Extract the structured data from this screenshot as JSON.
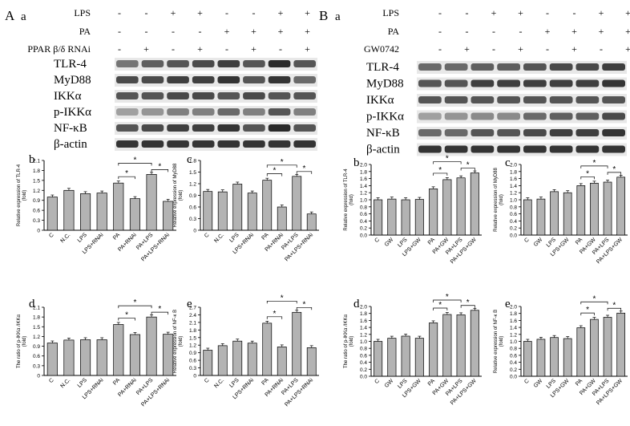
{
  "panels": {
    "A": {
      "letter": "A",
      "sub": "a",
      "conditions": [
        {
          "label": "LPS",
          "signs": [
            "-",
            "-",
            "+",
            "+",
            "-",
            "-",
            "+",
            "+"
          ]
        },
        {
          "label": "PA",
          "signs": [
            "-",
            "-",
            "-",
            "-",
            "+",
            "+",
            "+",
            "+"
          ]
        },
        {
          "label": "PPAR β/δ RNAi",
          "signs": [
            "-",
            "+",
            "-",
            "+",
            "-",
            "+",
            "-",
            "+"
          ]
        }
      ],
      "blots": [
        "TLR-4",
        "MyD88",
        "IKKα",
        "p-IKKα",
        "NF-κB",
        "β-actin"
      ],
      "blot_intensity": [
        [
          0.55,
          0.65,
          0.7,
          0.75,
          0.8,
          0.7,
          0.9,
          0.7
        ],
        [
          0.75,
          0.75,
          0.8,
          0.8,
          0.85,
          0.7,
          0.85,
          0.6
        ],
        [
          0.7,
          0.7,
          0.75,
          0.75,
          0.7,
          0.75,
          0.7,
          0.7
        ],
        [
          0.35,
          0.4,
          0.5,
          0.5,
          0.6,
          0.5,
          0.7,
          0.5
        ],
        [
          0.7,
          0.75,
          0.8,
          0.8,
          0.85,
          0.7,
          0.9,
          0.7
        ],
        [
          0.85,
          0.85,
          0.85,
          0.85,
          0.85,
          0.85,
          0.85,
          0.85
        ]
      ]
    },
    "B": {
      "letter": "B",
      "sub": "a",
      "conditions": [
        {
          "label": "LPS",
          "signs": [
            "-",
            "-",
            "+",
            "+",
            "-",
            "-",
            "+",
            "+"
          ]
        },
        {
          "label": "PA",
          "signs": [
            "-",
            "-",
            "-",
            "-",
            "+",
            "+",
            "+",
            "+"
          ]
        },
        {
          "label": "GW0742",
          "signs": [
            "-",
            "+",
            "-",
            "+",
            "-",
            "+",
            "-",
            "+"
          ]
        }
      ],
      "blots": [
        "TLR-4",
        "MyD88",
        "IKKα",
        "p-IKKα",
        "NF-κB",
        "β-actin"
      ],
      "blot_intensity": [
        [
          0.6,
          0.6,
          0.65,
          0.65,
          0.7,
          0.75,
          0.75,
          0.8
        ],
        [
          0.7,
          0.7,
          0.8,
          0.8,
          0.8,
          0.8,
          0.8,
          0.85
        ],
        [
          0.7,
          0.7,
          0.7,
          0.7,
          0.7,
          0.7,
          0.7,
          0.7
        ],
        [
          0.35,
          0.4,
          0.45,
          0.45,
          0.6,
          0.65,
          0.65,
          0.75
        ],
        [
          0.6,
          0.6,
          0.7,
          0.7,
          0.75,
          0.8,
          0.8,
          0.85
        ],
        [
          0.85,
          0.85,
          0.85,
          0.85,
          0.85,
          0.85,
          0.85,
          0.85
        ]
      ]
    }
  },
  "chart_data": [
    {
      "type": "bar",
      "id": "A-b",
      "panel_label": "b",
      "ylabel": "Relative expression of TLR-4",
      "ylabel_unit": "(fold)",
      "ylim": [
        0,
        2.1
      ],
      "yticks": [
        "0",
        "0.3",
        "0.6",
        "0.9",
        "1.2",
        "1.5",
        "1.8",
        "2.1"
      ],
      "categories": [
        "C",
        "N.C.",
        "LPS",
        "LPS+RNAi",
        "PA",
        "PA+RNAi",
        "PA+LPS",
        "PA+LPS+RNAi"
      ],
      "values": [
        1.0,
        1.2,
        1.1,
        1.12,
        1.42,
        0.95,
        1.68,
        0.87
      ],
      "significance": [
        {
          "from": 4,
          "to": 5,
          "label": "*"
        },
        {
          "from": 4,
          "to": 6,
          "label": "*"
        },
        {
          "from": 6,
          "to": 7,
          "label": "*"
        }
      ]
    },
    {
      "type": "bar",
      "id": "A-c",
      "panel_label": "c",
      "ylabel": "Relative expression of MyD88",
      "ylabel_unit": "(fold)",
      "ylim": [
        0,
        1.8
      ],
      "yticks": [
        "0",
        "0.3",
        "0.6",
        "0.9",
        "1.2",
        "1.5",
        "1.8"
      ],
      "categories": [
        "C",
        "N.C.",
        "LPS",
        "LPS+RNAi",
        "PA",
        "PA+RNAi",
        "PA+LPS",
        "PA+LPS+RNAi"
      ],
      "values": [
        1.0,
        0.99,
        1.19,
        0.96,
        1.29,
        0.6,
        1.39,
        0.42
      ],
      "significance": [
        {
          "from": 4,
          "to": 5,
          "label": "*"
        },
        {
          "from": 4,
          "to": 6,
          "label": "*"
        },
        {
          "from": 6,
          "to": 7,
          "label": "*"
        }
      ]
    },
    {
      "type": "bar",
      "id": "A-d",
      "panel_label": "d",
      "ylabel": "The ratio of p-IKKα /IKKα",
      "ylabel_unit": "(fold)",
      "ylim": [
        0,
        2.1
      ],
      "yticks": [
        "0",
        "0.3",
        "0.6",
        "0.9",
        "1.2",
        "1.5",
        "1.8",
        "2.1"
      ],
      "categories": [
        "C",
        "N.C.",
        "LPS",
        "LPS+RNAi",
        "PA",
        "PA+RNAi",
        "PA+LPS",
        "PA+LPS+RNAi"
      ],
      "values": [
        1.0,
        1.09,
        1.1,
        1.1,
        1.57,
        1.26,
        1.8,
        1.27
      ],
      "significance": [
        {
          "from": 4,
          "to": 5,
          "label": "*"
        },
        {
          "from": 4,
          "to": 6,
          "label": "*"
        },
        {
          "from": 6,
          "to": 7,
          "label": "*"
        }
      ]
    },
    {
      "type": "bar",
      "id": "A-e",
      "panel_label": "e",
      "ylabel": "Relative expression of NF-κ B",
      "ylabel_unit": "(fold)",
      "ylim": [
        0,
        2.7
      ],
      "yticks": [
        "0",
        "0.3",
        "0.6",
        "0.9",
        "1.2",
        "1.5",
        "1.8",
        "2.1",
        "2.4",
        "2.7"
      ],
      "categories": [
        "C",
        "N.C.",
        "LPS",
        "LPS+RNAi",
        "PA",
        "PA+RNAi",
        "PA+LPS",
        "PA+LPS+RNAi"
      ],
      "values": [
        1.0,
        1.18,
        1.36,
        1.28,
        2.07,
        1.13,
        2.5,
        1.1
      ],
      "significance": [
        {
          "from": 4,
          "to": 5,
          "label": "*"
        },
        {
          "from": 4,
          "to": 6,
          "label": "*"
        },
        {
          "from": 6,
          "to": 7,
          "label": "*"
        }
      ]
    },
    {
      "type": "bar",
      "id": "B-b",
      "panel_label": "b",
      "ylabel": "Relative expression of TLR-4",
      "ylabel_unit": "(fold)",
      "ylim": [
        0,
        2.0
      ],
      "yticks": [
        "0.0",
        "0.2",
        "0.4",
        "0.6",
        "0.8",
        "1.0",
        "1.2",
        "1.4",
        "1.6",
        "1.8",
        "2.0"
      ],
      "categories": [
        "C",
        "GW",
        "LPS",
        "LPS+GW",
        "PA",
        "PA+GW",
        "PA+LPS",
        "PA+LPS+GW"
      ],
      "values": [
        1.0,
        1.02,
        1.0,
        1.01,
        1.31,
        1.57,
        1.62,
        1.76
      ],
      "significance": [
        {
          "from": 4,
          "to": 5,
          "label": "*"
        },
        {
          "from": 4,
          "to": 6,
          "label": "*"
        },
        {
          "from": 6,
          "to": 7,
          "label": "*"
        }
      ]
    },
    {
      "type": "bar",
      "id": "B-c",
      "panel_label": "c",
      "ylabel": "Relative expression of MyD88",
      "ylabel_unit": "(fold)",
      "ylim": [
        0,
        2.0
      ],
      "yticks": [
        "0.0",
        "0.2",
        "0.4",
        "0.6",
        "0.8",
        "1.0",
        "1.2",
        "1.4",
        "1.6",
        "1.8",
        "2.0"
      ],
      "categories": [
        "C",
        "GW",
        "LPS",
        "LPS+GW",
        "PA",
        "PA+GW",
        "PA+LPS",
        "PA+LPS+GW"
      ],
      "values": [
        1.0,
        1.02,
        1.23,
        1.2,
        1.4,
        1.47,
        1.5,
        1.64
      ],
      "significance": [
        {
          "from": 4,
          "to": 5,
          "label": "*"
        },
        {
          "from": 4,
          "to": 6,
          "label": "*"
        },
        {
          "from": 6,
          "to": 7,
          "label": "*"
        }
      ]
    },
    {
      "type": "bar",
      "id": "B-d",
      "panel_label": "d",
      "ylabel": "The ratio of p-IKKα /IKKα",
      "ylabel_unit": "(fold)",
      "ylim": [
        0,
        2.0
      ],
      "yticks": [
        "0.0",
        "0.2",
        "0.4",
        "0.6",
        "0.8",
        "1.0",
        "1.2",
        "1.4",
        "1.6",
        "1.8",
        "2.0"
      ],
      "categories": [
        "C",
        "GW",
        "LPS",
        "LPS+GW",
        "PA",
        "PA+GW",
        "PA+LPS",
        "PA+LPS+GW"
      ],
      "values": [
        1.0,
        1.09,
        1.15,
        1.09,
        1.53,
        1.77,
        1.76,
        1.89
      ],
      "significance": [
        {
          "from": 4,
          "to": 5,
          "label": "*"
        },
        {
          "from": 4,
          "to": 6,
          "label": "*"
        },
        {
          "from": 6,
          "to": 7,
          "label": "*"
        }
      ]
    },
    {
      "type": "bar",
      "id": "B-e",
      "panel_label": "e",
      "ylabel": "Relative expression of NF-κ B",
      "ylabel_unit": "(fold)",
      "ylim": [
        0,
        2.0
      ],
      "yticks": [
        "0.0",
        "0.2",
        "0.4",
        "0.6",
        "0.8",
        "1.0",
        "1.2",
        "1.4",
        "1.6",
        "1.8",
        "2.0"
      ],
      "categories": [
        "C",
        "GW",
        "LPS",
        "LPS+GW",
        "PA",
        "PA+GW",
        "PA+LPS",
        "PA+LPS+GW"
      ],
      "values": [
        1.0,
        1.06,
        1.11,
        1.08,
        1.39,
        1.63,
        1.69,
        1.81
      ],
      "significance": [
        {
          "from": 4,
          "to": 5,
          "label": "*"
        },
        {
          "from": 4,
          "to": 6,
          "label": "*"
        },
        {
          "from": 6,
          "to": 7,
          "label": "*"
        }
      ]
    }
  ],
  "colors": {
    "bar": "#b3b3b3",
    "bar_stroke": "#000000",
    "blot_band": "#1a1a1a"
  }
}
